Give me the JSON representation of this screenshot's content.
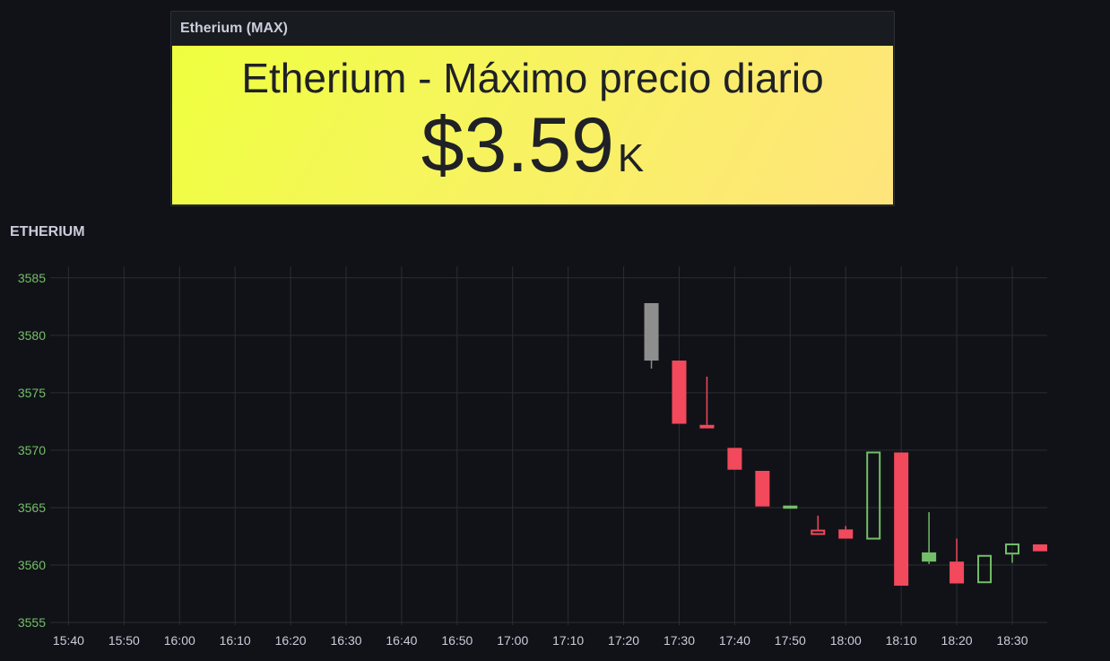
{
  "stat_panel": {
    "header": "Etherium (MAX)",
    "title": "Etherium - Máximo precio diario",
    "value": "$3.59",
    "unit": "K",
    "colors": {
      "gradient_start": "#eeff3e",
      "gradient_end": "#ffe47c",
      "text": "#1f2126"
    }
  },
  "chart_panel": {
    "title": "ETHERIUM"
  },
  "chart_data": {
    "type": "candlestick",
    "title": "ETHERIUM",
    "xlabel": "",
    "ylabel": "",
    "grid": true,
    "ylim": [
      3555,
      3586
    ],
    "y_ticks": [
      3555,
      3560,
      3565,
      3570,
      3575,
      3580,
      3585
    ],
    "x_ticks": [
      "15:40",
      "15:50",
      "16:00",
      "16:10",
      "16:20",
      "16:30",
      "16:40",
      "16:50",
      "17:00",
      "17:10",
      "17:20",
      "17:30",
      "17:40",
      "17:50",
      "18:00",
      "18:10",
      "18:20",
      "18:30"
    ],
    "x_range": [
      "15:40",
      "18:36"
    ],
    "colors": {
      "up": "#73bf69",
      "down": "#f2495c",
      "neutral": "#8e8e8e",
      "y_tick": "#73bf69",
      "x_tick": "#ccccdc"
    },
    "candles": [
      {
        "time": "17:25",
        "open": 3582.8,
        "close": 3577.8,
        "high": 3582.8,
        "low": 3577.1,
        "color": "neutral",
        "filled": true
      },
      {
        "time": "17:30",
        "open": 3577.8,
        "close": 3572.3,
        "high": 3577.8,
        "low": 3572.3,
        "color": "down",
        "filled": true
      },
      {
        "time": "17:35",
        "open": 3572.2,
        "close": 3571.9,
        "high": 3576.4,
        "low": 3571.9,
        "color": "down",
        "filled": true
      },
      {
        "time": "17:40",
        "open": 3570.2,
        "close": 3568.3,
        "high": 3570.2,
        "low": 3568.3,
        "color": "down",
        "filled": true
      },
      {
        "time": "17:45",
        "open": 3568.2,
        "close": 3565.1,
        "high": 3568.2,
        "low": 3565.1,
        "color": "down",
        "filled": true
      },
      {
        "time": "17:50",
        "open": 3565.0,
        "close": 3565.1,
        "high": 3565.1,
        "low": 3565.0,
        "color": "up",
        "filled": false
      },
      {
        "time": "17:55",
        "open": 3563.0,
        "close": 3562.7,
        "high": 3564.3,
        "low": 3562.7,
        "color": "down",
        "filled": false
      },
      {
        "time": "18:00",
        "open": 3563.1,
        "close": 3562.3,
        "high": 3563.4,
        "low": 3562.3,
        "color": "down",
        "filled": true
      },
      {
        "time": "18:05",
        "open": 3562.3,
        "close": 3569.8,
        "high": 3569.8,
        "low": 3562.3,
        "color": "up",
        "filled": false
      },
      {
        "time": "18:10",
        "open": 3569.8,
        "close": 3558.2,
        "high": 3569.8,
        "low": 3558.2,
        "color": "down",
        "filled": true
      },
      {
        "time": "18:15",
        "open": 3561.1,
        "close": 3560.3,
        "high": 3564.6,
        "low": 3560.1,
        "color": "up",
        "filled": true
      },
      {
        "time": "18:20",
        "open": 3560.3,
        "close": 3558.4,
        "high": 3562.3,
        "low": 3558.4,
        "color": "down",
        "filled": true
      },
      {
        "time": "18:25",
        "open": 3558.5,
        "close": 3560.8,
        "high": 3560.8,
        "low": 3558.5,
        "color": "up",
        "filled": false
      },
      {
        "time": "18:30",
        "open": 3561.0,
        "close": 3561.8,
        "high": 3561.8,
        "low": 3560.2,
        "color": "up",
        "filled": false
      },
      {
        "time": "18:35",
        "open": 3561.8,
        "close": 3561.2,
        "high": 3561.8,
        "low": 3561.2,
        "color": "down",
        "filled": true
      }
    ]
  }
}
